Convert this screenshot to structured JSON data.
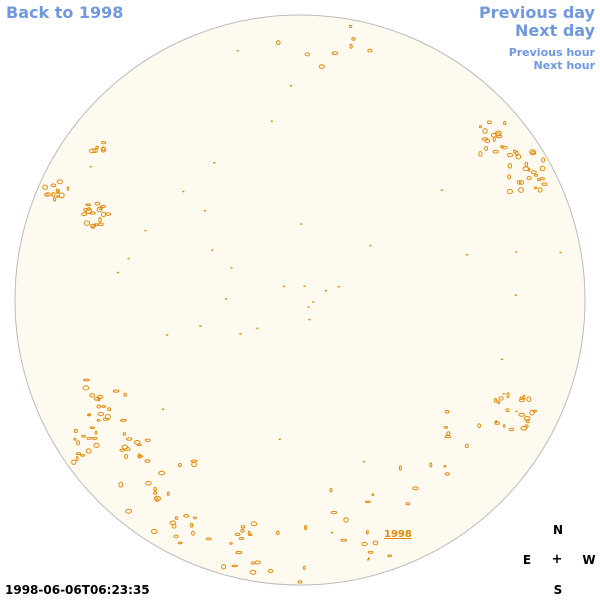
{
  "nav": {
    "back_label": "Back to 1998",
    "prev_day_label": "Previous day",
    "next_day_label": "Next day",
    "prev_hour_label": "Previous hour",
    "next_hour_label": "Next hour"
  },
  "compass": {
    "north": "N",
    "east": "E",
    "center": "+",
    "west": "W",
    "south": "S"
  },
  "timestamp": "1998-06-06T06:23:35",
  "year_label": "1998",
  "colors": {
    "link": "#6f98e0",
    "disk_fill": "#fffaf0",
    "disk_border": "#bbbbbb",
    "feature": "#e28a08"
  }
}
